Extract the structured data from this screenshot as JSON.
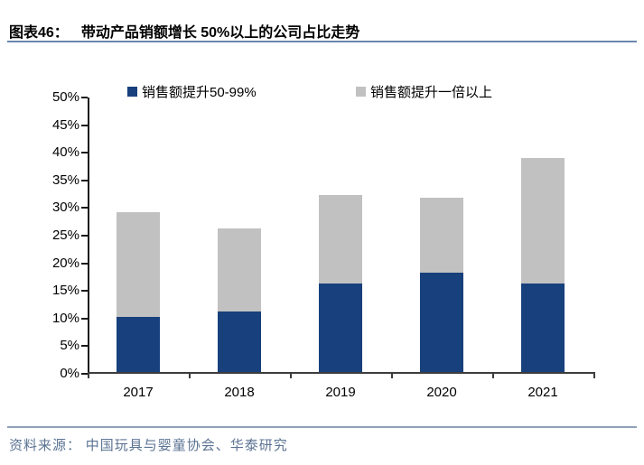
{
  "header": {
    "label": "图表46：",
    "title": "带动产品销额增长 50%以上的公司占比走势"
  },
  "chart_data": {
    "type": "bar",
    "stacked": true,
    "title": "带动产品销额增长 50%以上的公司占比走势",
    "categories": [
      "2017",
      "2018",
      "2019",
      "2020",
      "2021"
    ],
    "series": [
      {
        "name": "销售额提升50-99%",
        "color": "#17407c",
        "values": [
          10,
          11,
          16,
          18,
          16
        ]
      },
      {
        "name": "销售额提升一倍以上",
        "color": "#c1c1c1",
        "values": [
          19,
          15,
          16,
          13.5,
          22.7
        ]
      }
    ],
    "totals": [
      29,
      26,
      32,
      31.5,
      38.7
    ],
    "ylim": [
      0,
      50
    ],
    "ytick_step": 5,
    "ytick_labels": [
      "0%",
      "5%",
      "10%",
      "15%",
      "20%",
      "25%",
      "30%",
      "35%",
      "40%",
      "45%",
      "50%"
    ],
    "legend_position": "top",
    "grid": false
  },
  "footer": {
    "source": "资料来源： 中国玩具与婴童协会、华泰研究"
  },
  "colors": {
    "series1": "#17407c",
    "series2": "#c1c1c1",
    "title_rule": "#6b86ad",
    "footer_rule": "#8fa1b8",
    "footer_text": "#5b7393",
    "axis": "#1a1a1a"
  }
}
